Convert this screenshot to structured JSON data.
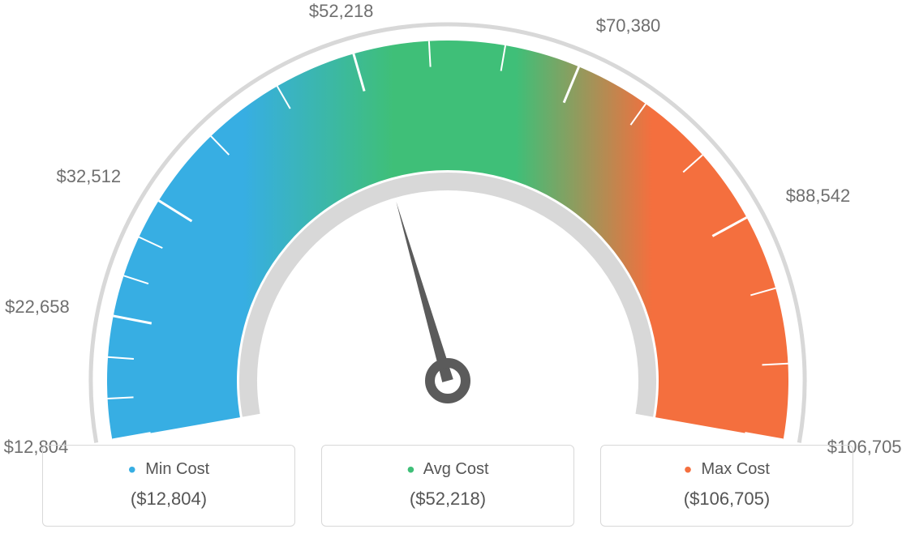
{
  "gauge": {
    "min_value": 12804,
    "max_value": 106705,
    "needle_value": 52218,
    "start_angle_deg": 190,
    "end_angle_deg": -10,
    "outer_radius": 420,
    "inner_radius": 260,
    "colors": {
      "segment_low": "#37aee3",
      "segment_mid": "#3fbf78",
      "segment_high": "#f46f3e",
      "outer_arc": "#d8d8d8",
      "inner_arc": "#d8d8d8",
      "needle": "#5b5b5b",
      "tick_major": "#ffffff",
      "tick_minor": "#ffffff",
      "label_text": "#6f6f6f"
    },
    "tick_major_length": 48,
    "tick_minor_length": 32,
    "outer_arc_width": 5,
    "inner_arc_width": 22,
    "major_ticks": [
      {
        "value": 12804,
        "label": "$12,804"
      },
      {
        "value": 22658,
        "label": "$22,658"
      },
      {
        "value": 32512,
        "label": "$32,512"
      },
      {
        "value": 52218,
        "label": "$52,218"
      },
      {
        "value": 70380,
        "label": "$70,380"
      },
      {
        "value": 88542,
        "label": "$88,542"
      },
      {
        "value": 106705,
        "label": "$106,705"
      }
    ],
    "minor_ticks_between": 2,
    "label_fontsize": 22
  },
  "cards": {
    "min": {
      "label": "Min Cost",
      "value": "($12,804)",
      "dot_color": "#37aee3"
    },
    "avg": {
      "label": "Avg Cost",
      "value": "($52,218)",
      "dot_color": "#3fbf78"
    },
    "max": {
      "label": "Max Cost",
      "value": "($106,705)",
      "dot_color": "#f46f3e"
    }
  }
}
